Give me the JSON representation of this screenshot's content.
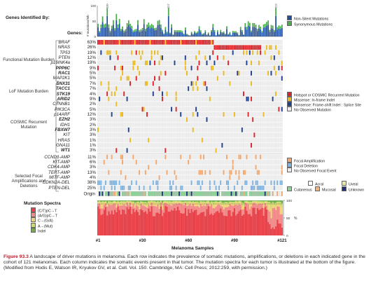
{
  "header": {
    "genes_identified_by": "Genes Identified By:",
    "genes_label": "Genes:"
  },
  "bar_axis": {
    "label": "# mutations/Mb",
    "ticks": [
      "100",
      "50",
      "0"
    ]
  },
  "bar_annotations": [
    "100",
    "227",
    "222"
  ],
  "bar_legend": [
    {
      "label": "Non-Silent Mutations",
      "color": "#1f4e9c"
    },
    {
      "label": "Synonymous Mutations",
      "color": "#4aab4a"
    }
  ],
  "categories": [
    {
      "label": "Functional Mutation Burden"
    },
    {
      "label": "LoF Mutation Burden"
    },
    {
      "label": "COSMIC Recurrent Mutation"
    },
    {
      "label": "Selected Focal Amplifications and Deletions"
    }
  ],
  "genes": [
    {
      "name": "BRAF",
      "pct": "63%",
      "bold": false,
      "kind": "mut"
    },
    {
      "name": "NRAS",
      "pct": "26%",
      "bold": false,
      "kind": "mut"
    },
    {
      "name": "TP53",
      "pct": "19%",
      "bold": false,
      "kind": "mut"
    },
    {
      "name": "PTEN",
      "pct": "12%",
      "bold": false,
      "kind": "mut"
    },
    {
      "name": "p16INK4a",
      "pct": "19%",
      "bold": false,
      "kind": "mut"
    },
    {
      "name": "PPP6C",
      "pct": "9%",
      "bold": true,
      "kind": "mut"
    },
    {
      "name": "RAC1",
      "pct": "5%",
      "bold": true,
      "kind": "mut"
    },
    {
      "name": "MAP2K1",
      "pct": "5%",
      "bold": false,
      "kind": "mut"
    },
    {
      "name": "SNX31",
      "pct": "7%",
      "bold": true,
      "kind": "mut"
    },
    {
      "name": "TACC1",
      "pct": "7%",
      "bold": true,
      "kind": "mut"
    },
    {
      "name": "STK19",
      "pct": "4%",
      "bold": true,
      "kind": "mut"
    },
    {
      "name": "ARID2",
      "pct": "9%",
      "bold": true,
      "kind": "mut"
    },
    {
      "name": "CTNNB1",
      "pct": "2%",
      "bold": false,
      "kind": "mut"
    },
    {
      "name": "PIK3CA",
      "pct": "5%",
      "bold": false,
      "kind": "mut"
    },
    {
      "name": "p14ARF",
      "pct": "12%",
      "bold": false,
      "kind": "mut"
    },
    {
      "name": "EZH2",
      "pct": "3%",
      "bold": true,
      "kind": "mut"
    },
    {
      "name": "IDH1",
      "pct": "2%",
      "bold": false,
      "kind": "mut"
    },
    {
      "name": "FBXW7",
      "pct": "3%",
      "bold": true,
      "kind": "mut"
    },
    {
      "name": "KIT",
      "pct": "3%",
      "bold": false,
      "kind": "mut"
    },
    {
      "name": "HRAS",
      "pct": "1%",
      "bold": false,
      "kind": "mut"
    },
    {
      "name": "GNA11",
      "pct": "1%",
      "bold": false,
      "kind": "mut"
    },
    {
      "name": "WT1",
      "pct": "3%",
      "bold": true,
      "kind": "mut"
    },
    {
      "name": "CCND1-AMP",
      "pct": "11%",
      "bold": false,
      "kind": "amp"
    },
    {
      "name": "KIT-AMP",
      "pct": "6%",
      "bold": false,
      "kind": "amp"
    },
    {
      "name": "CDK4-AMP",
      "pct": "3%",
      "bold": false,
      "kind": "amp"
    },
    {
      "name": "TERT-AMP",
      "pct": "13%",
      "bold": false,
      "kind": "amp"
    },
    {
      "name": "MITF-AMP",
      "pct": "4%",
      "bold": false,
      "kind": "amp"
    },
    {
      "name": "CDKN2A-DEL",
      "pct": "38%",
      "bold": false,
      "kind": "del"
    },
    {
      "name": "PTEN-DEL",
      "pct": "25%",
      "bold": false,
      "kind": "del"
    }
  ],
  "origin_label": "Origin",
  "mutation_legend": [
    {
      "label": "Hotspot or COSMIC Recurrent Mutation",
      "color": "#d8262c"
    },
    {
      "label": "Missense: In-frame Indel",
      "color": "#e8b923"
    },
    {
      "label": "Nonsense: Frame-shift Indel : Splice Site",
      "color": "#1f3f8f"
    },
    {
      "label": "No Observed Mutation",
      "color": "#ebebeb"
    }
  ],
  "cnv_legend": [
    {
      "label": "Focal Amplification",
      "color": "#f0a66c"
    },
    {
      "label": "Focal Deletion",
      "color": "#7fb1dd"
    },
    {
      "label": "No Observed Focal Event",
      "color": "#ebebeb"
    }
  ],
  "origin_legend": [
    {
      "label": "Acral",
      "color": "#ffffff"
    },
    {
      "label": "Uveal",
      "color": "#e8e6a8"
    },
    {
      "label": "Cutaneous",
      "color": "#8fd39a"
    },
    {
      "label": "Mucosal",
      "color": "#f3b27a"
    },
    {
      "label": "Unknown",
      "color": "#1f2f7a"
    }
  ],
  "spectra": {
    "title": "Mutation Spectra",
    "y_unit": "%",
    "y_ticks": [
      "100",
      "50",
      "0"
    ],
    "classes": [
      {
        "label": "(C/T)pC→T",
        "color": "#e8424a"
      },
      {
        "label": "(A/G)pC→T",
        "color": "#f28a8a"
      },
      {
        "label": "C→(G/A)",
        "color": "#f0d27a"
      },
      {
        "label": "A→(Mut)",
        "color": "#c9dc6a"
      },
      {
        "label": "Indel",
        "color": "#6fae4f"
      }
    ]
  },
  "samples_axis": {
    "ticks": [
      {
        "label": "#1",
        "sample": 1
      },
      {
        "label": "#30",
        "sample": 30
      },
      {
        "label": "#60",
        "sample": 60
      },
      {
        "label": "#90",
        "sample": 90
      },
      {
        "label": "#121",
        "sample": 121
      }
    ],
    "xlabel": "Melanoma Samples"
  },
  "caption": {
    "fig": "Figure 93.3",
    "text": " A landscape of driver mutations in melanoma. Each row indicates the prevalence of somatic mutations, amplifications, or deletions in each indicated gene in the cohort of 121 melanomas. Each column indicates the somatic events present in that tumor. The mutation spectra for each tumor is illustrated at the bottom of the figure. (Modified from Hodis E, Watson IR, Kryukov GV, et al. Cell. Vol. 150. Cambridge, MA: Cell Press; 2012:259, with permission.)"
  },
  "chart_data": {
    "type": "heatmap",
    "n_samples": 121,
    "rows": [
      "BRAF",
      "NRAS",
      "TP53",
      "PTEN",
      "p16INK4a",
      "PPP6C",
      "RAC1",
      "MAP2K1",
      "SNX31",
      "TACC1",
      "STK19",
      "ARID2",
      "CTNNB1",
      "PIK3CA",
      "p14ARF",
      "EZH2",
      "IDH1",
      "FBXW7",
      "KIT",
      "HRAS",
      "GNA11",
      "WT1",
      "CCND1-AMP",
      "KIT-AMP",
      "CDK4-AMP",
      "TERT-AMP",
      "MITF-AMP",
      "CDKN2A-DEL",
      "PTEN-DEL"
    ],
    "prevalence_pct": [
      63,
      26,
      19,
      12,
      19,
      9,
      5,
      5,
      7,
      7,
      4,
      9,
      2,
      5,
      12,
      3,
      2,
      3,
      3,
      1,
      1,
      3,
      11,
      6,
      3,
      13,
      4,
      38,
      25
    ],
    "mutation_burden_ylim": [
      0,
      100
    ],
    "spectra_ylim": [
      0,
      100
    ]
  }
}
